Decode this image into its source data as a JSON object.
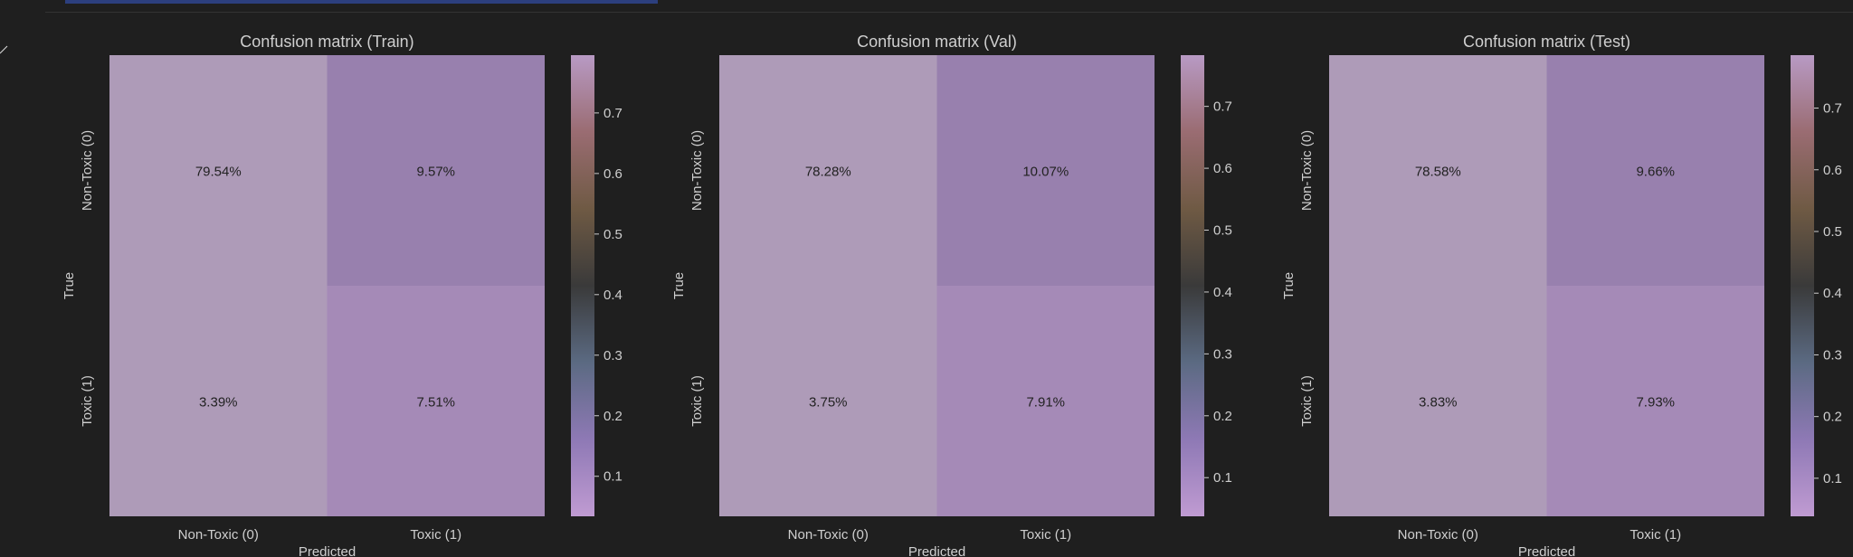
{
  "chart_data": [
    {
      "type": "heatmap",
      "title": "Confusion matrix (Train)",
      "xlabel": "Predicted",
      "ylabel": "True",
      "x_categories": [
        "Non-Toxic (0)",
        "Toxic (1)"
      ],
      "y_categories": [
        "Non-Toxic (0)",
        "Toxic (1)"
      ],
      "values": [
        [
          0.7954,
          0.0957
        ],
        [
          0.0339,
          0.0751
        ]
      ],
      "cell_labels": [
        [
          "79.54%",
          "9.57%"
        ],
        [
          "3.39%",
          "7.51%"
        ]
      ],
      "colorbar": {
        "range": [
          0.0339,
          0.7954
        ],
        "ticks": [
          0.1,
          0.2,
          0.3,
          0.4,
          0.5,
          0.6,
          0.7
        ],
        "tick_labels": [
          "0.1",
          "0.2",
          "0.3",
          "0.4",
          "0.5",
          "0.6",
          "0.7"
        ]
      }
    },
    {
      "type": "heatmap",
      "title": "Confusion matrix (Val)",
      "xlabel": "Predicted",
      "ylabel": "True",
      "x_categories": [
        "Non-Toxic (0)",
        "Toxic (1)"
      ],
      "y_categories": [
        "Non-Toxic (0)",
        "Toxic (1)"
      ],
      "values": [
        [
          0.7828,
          0.1007
        ],
        [
          0.0375,
          0.0791
        ]
      ],
      "cell_labels": [
        [
          "78.28%",
          "10.07%"
        ],
        [
          "3.75%",
          "7.91%"
        ]
      ],
      "colorbar": {
        "range": [
          0.0375,
          0.7828
        ],
        "ticks": [
          0.1,
          0.2,
          0.3,
          0.4,
          0.5,
          0.6,
          0.7
        ],
        "tick_labels": [
          "0.1",
          "0.2",
          "0.3",
          "0.4",
          "0.5",
          "0.6",
          "0.7"
        ]
      }
    },
    {
      "type": "heatmap",
      "title": "Confusion matrix (Test)",
      "xlabel": "Predicted",
      "ylabel": "True",
      "x_categories": [
        "Non-Toxic (0)",
        "Toxic (1)"
      ],
      "y_categories": [
        "Non-Toxic (0)",
        "Toxic (1)"
      ],
      "values": [
        [
          0.7858,
          0.0966
        ],
        [
          0.0383,
          0.0793
        ]
      ],
      "cell_labels": [
        [
          "78.58%",
          "9.66%"
        ],
        [
          "3.83%",
          "7.93%"
        ]
      ],
      "colorbar": {
        "range": [
          0.0383,
          0.7858
        ],
        "ticks": [
          0.1,
          0.2,
          0.3,
          0.4,
          0.5,
          0.6,
          0.7
        ],
        "tick_labels": [
          "0.1",
          "0.2",
          "0.3",
          "0.4",
          "0.5",
          "0.6",
          "0.7"
        ]
      }
    }
  ],
  "colors": {
    "background": "#1f1f1f",
    "text": "#cfcfcf",
    "cell_text": "#222222",
    "cell_high": "#ae9bb8",
    "cell_mid": "#a58ab7",
    "cell_low": "#9880ae",
    "colormap": [
      "#c09bd2",
      "#8e79b5",
      "#5b6a82",
      "#3a3a3a",
      "#6f5a44",
      "#9a6c72",
      "#b89ac4"
    ]
  }
}
